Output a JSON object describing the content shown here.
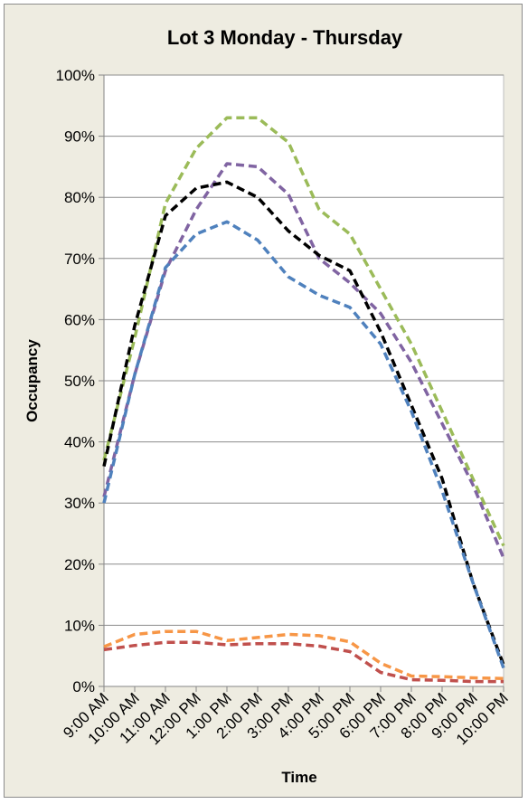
{
  "chart_data": {
    "type": "line",
    "title": "Lot 3 Monday - Thursday",
    "xlabel": "Time",
    "ylabel": "Occupancy",
    "categories": [
      "9:00 AM",
      "10:00 AM",
      "11:00 AM",
      "12:00 PM",
      "1:00 PM",
      "2:00 PM",
      "3:00 PM",
      "4:00 PM",
      "5:00 PM",
      "6:00 PM",
      "7:00 PM",
      "8:00 PM",
      "9:00 PM",
      "10:00 PM"
    ],
    "ylim": [
      0,
      100
    ],
    "yticks": [
      "0%",
      "10%",
      "20%",
      "30%",
      "40%",
      "50%",
      "60%",
      "70%",
      "80%",
      "90%",
      "100%"
    ],
    "grid": true,
    "line_style": "dashed",
    "series": [
      {
        "color": "#9bbb59",
        "values": [
          37,
          57,
          79,
          88,
          93,
          93,
          89,
          78,
          74,
          65,
          56,
          45,
          34,
          23
        ]
      },
      {
        "color": "#8064a2",
        "values": [
          31,
          51,
          68,
          78,
          85.5,
          85,
          80.5,
          70,
          66,
          61,
          53,
          43,
          33,
          21
        ]
      },
      {
        "color": "#000000",
        "values": [
          36,
          59,
          77,
          81.5,
          82.5,
          80,
          74.5,
          70.5,
          68,
          58,
          46,
          34,
          17,
          3.5
        ]
      },
      {
        "color": "#4f81bd",
        "values": [
          30,
          51,
          68.5,
          74,
          76,
          73,
          67,
          64,
          62,
          56,
          45,
          32,
          17,
          3
        ]
      },
      {
        "color": "#f79646",
        "values": [
          6.5,
          8.5,
          9,
          9,
          7.5,
          8,
          8.5,
          8.3,
          7.3,
          3.8,
          1.7,
          1.6,
          1.4,
          1.3
        ]
      },
      {
        "color": "#c0504d",
        "values": [
          6,
          6.7,
          7.2,
          7.2,
          6.8,
          7,
          7,
          6.6,
          5.7,
          2.3,
          1.1,
          1,
          0.8,
          0.8
        ]
      }
    ]
  }
}
